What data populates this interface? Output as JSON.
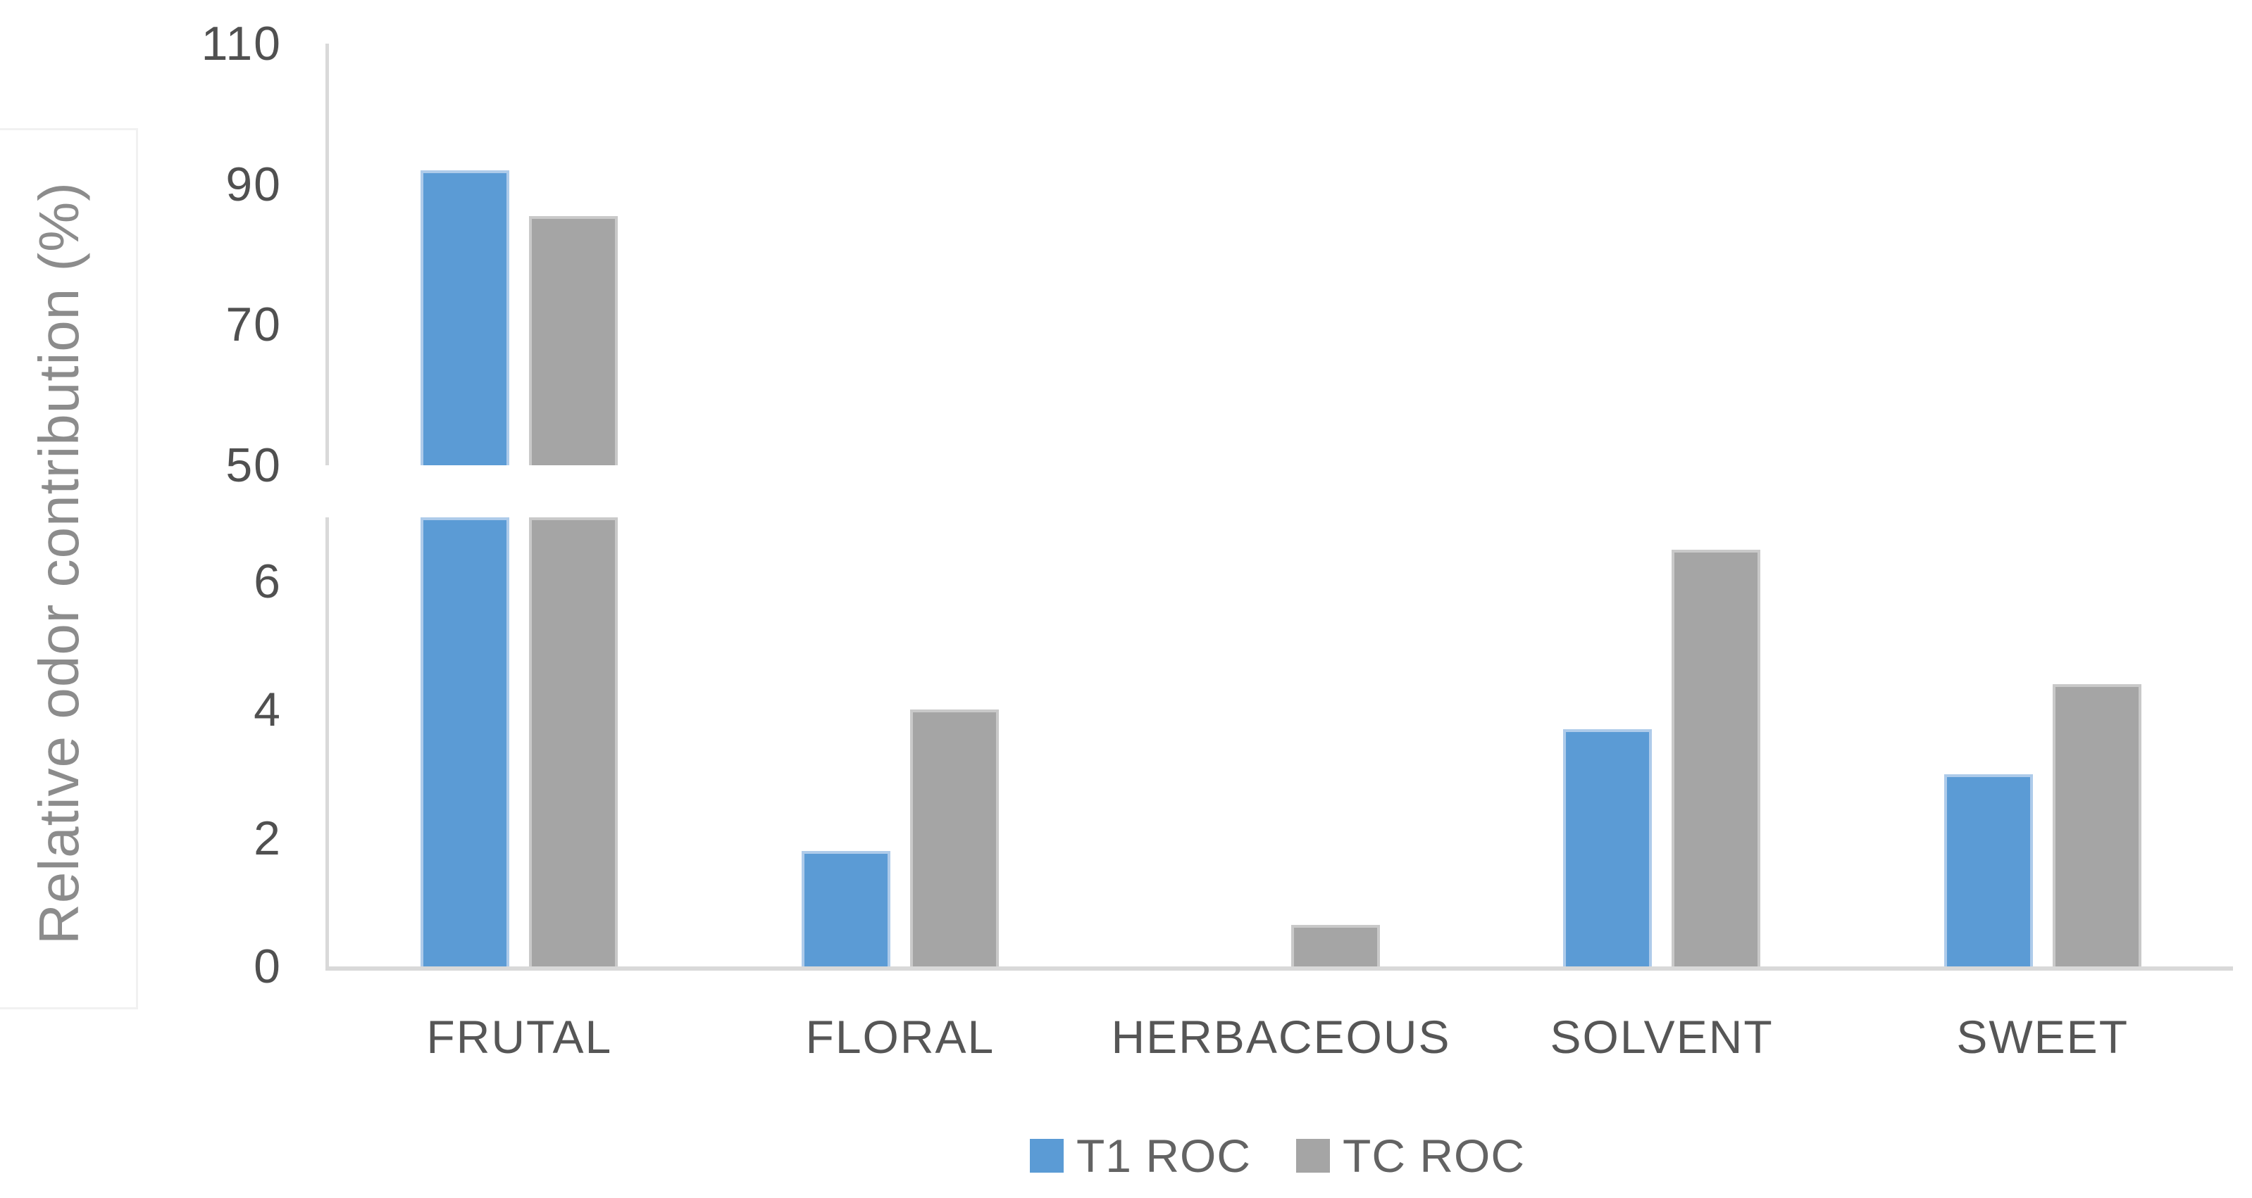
{
  "chart_data": {
    "type": "bar",
    "title": "",
    "ylabel": "Relative odor contribution (%)",
    "categories": [
      "FRUTAL",
      "FLORAL",
      "HERBACEOUS",
      "SOLVENT",
      "SWEET"
    ],
    "series": [
      {
        "name": "T1 ROC",
        "color": "#5B9BD5",
        "edge_color": "#AECBEA",
        "values": [
          92,
          1.8,
          0,
          3.7,
          3
        ]
      },
      {
        "name": "TC ROC",
        "color": "#A5A5A5",
        "edge_color": "#C9C9C9",
        "values": [
          85.5,
          4,
          0.65,
          6.5,
          4.4
        ]
      }
    ],
    "broken_y_axis": {
      "top_panel": {
        "ymin": 50,
        "ymax": 110,
        "ticks": [
          110,
          90,
          70,
          50
        ]
      },
      "bottom_panel": {
        "ymin": 0,
        "ymax": 7,
        "ticks": [
          6,
          4,
          2,
          0
        ]
      }
    },
    "legend": {
      "position": "bottom",
      "entries": [
        "T1 ROC",
        "TC ROC"
      ]
    },
    "grid": false,
    "axis_color": "#D9D9D9"
  }
}
